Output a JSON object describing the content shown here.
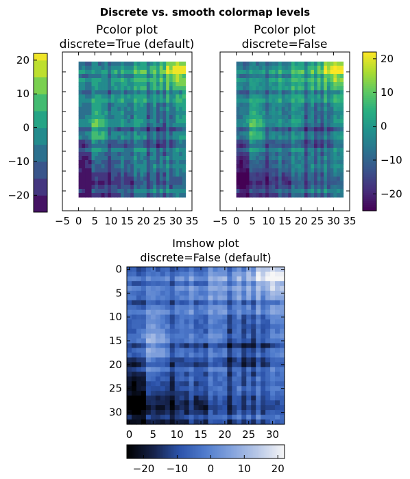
{
  "figure": {
    "suptitle": "Discrete vs. smooth colormap levels"
  },
  "chart_data": [
    {
      "type": "heatmap",
      "title_line1": "Pcolor plot",
      "title_line2": "discrete=True (default)",
      "discrete": true,
      "colormap": "viridis",
      "grid_size": [
        33,
        33
      ],
      "xlim": [
        -5,
        35
      ],
      "xticks": [
        -5,
        0,
        5,
        10,
        15,
        20,
        25,
        30,
        35
      ],
      "xtick_labels": [
        "−5",
        "0",
        "5",
        "10",
        "15",
        "20",
        "25",
        "30",
        "35"
      ],
      "yticks_shown": false,
      "colorbar": {
        "position": "left",
        "vmin": -25,
        "vmax": 22,
        "levels": [
          -25,
          -20,
          -15,
          -10,
          -5,
          0,
          5,
          10,
          15,
          20,
          22
        ],
        "ticks": [
          -20,
          -10,
          0,
          10,
          20
        ],
        "tick_labels": [
          "−20",
          "−10",
          "0",
          "10",
          "20"
        ]
      }
    },
    {
      "type": "heatmap",
      "title_line1": "Pcolor plot",
      "title_line2": "discrete=False",
      "discrete": false,
      "colormap": "viridis",
      "grid_size": [
        33,
        33
      ],
      "xlim": [
        -5,
        35
      ],
      "xticks": [
        -5,
        0,
        5,
        10,
        15,
        20,
        25,
        30,
        35
      ],
      "xtick_labels": [
        "−5",
        "0",
        "5",
        "10",
        "15",
        "20",
        "25",
        "30",
        "35"
      ],
      "yticks_shown": false,
      "colorbar": {
        "position": "right",
        "vmin": -25,
        "vmax": 22,
        "ticks": [
          -20,
          -10,
          0,
          10,
          20
        ],
        "tick_labels": [
          "−20",
          "−10",
          "0",
          "10",
          "20"
        ]
      }
    },
    {
      "type": "heatmap",
      "title_line1": "Imshow plot",
      "title_line2": "discrete=False (default)",
      "discrete": false,
      "colormap": "blue-white",
      "grid_size": [
        33,
        33
      ],
      "xlim": [
        -0.5,
        32.5
      ],
      "ylim": [
        32.5,
        -0.5
      ],
      "xticks": [
        0,
        5,
        10,
        15,
        20,
        25,
        30
      ],
      "xtick_labels": [
        "0",
        "5",
        "10",
        "15",
        "20",
        "25",
        "30"
      ],
      "yticks": [
        0,
        5,
        10,
        15,
        20,
        25,
        30
      ],
      "ytick_labels": [
        "0",
        "5",
        "10",
        "15",
        "20",
        "25",
        "30"
      ],
      "colorbar": {
        "position": "bottom",
        "vmin": -25,
        "vmax": 22,
        "ticks": [
          -20,
          -10,
          0,
          10,
          20
        ],
        "tick_labels": [
          "−20",
          "−10",
          "0",
          "10",
          "20"
        ]
      }
    }
  ]
}
